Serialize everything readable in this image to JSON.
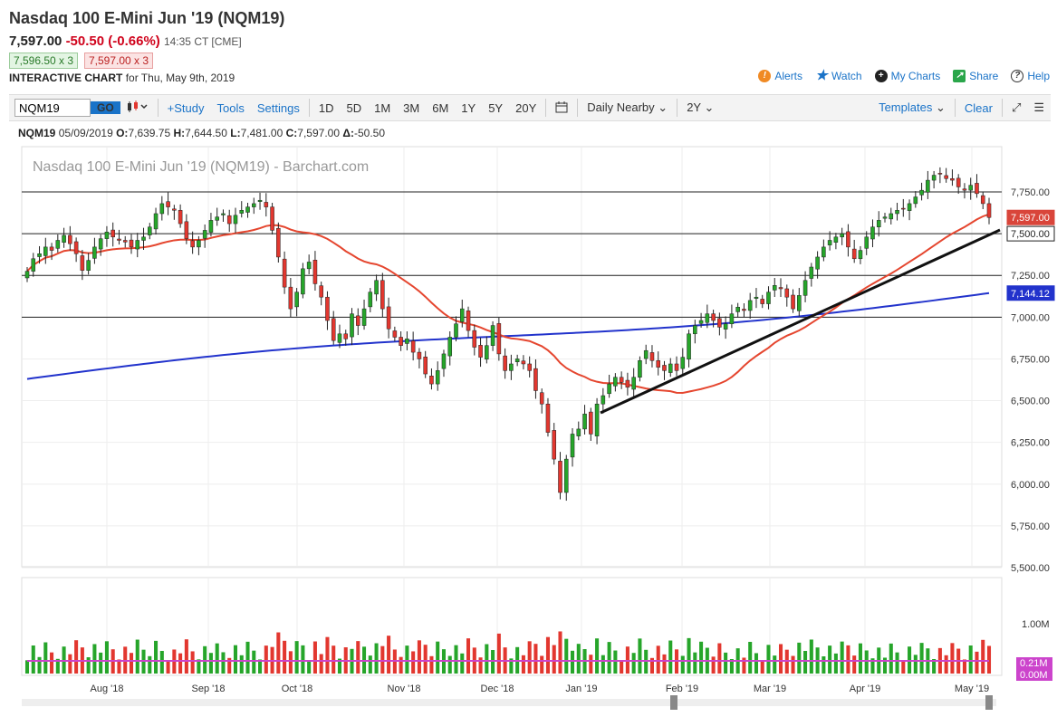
{
  "header": {
    "title": "Nasdaq 100 E-Mini Jun '19 (NQM19)",
    "last": "7,597.00",
    "change": "-50.50 (-0.66%)",
    "time": "14:35 CT [CME]",
    "bid": "7,596.50 x 3",
    "ask": "7,597.00 x 3",
    "interactive_label": "INTERACTIVE CHART",
    "for_date": "for Thu, May 9th, 2019"
  },
  "links": {
    "alerts": "Alerts",
    "watch": "Watch",
    "my_charts": "My Charts",
    "share": "Share",
    "help": "Help"
  },
  "toolbar": {
    "symbol": "NQM19",
    "go": "GO",
    "study": "+Study",
    "tools": "Tools",
    "settings": "Settings",
    "periods": [
      "1D",
      "5D",
      "1M",
      "3M",
      "6M",
      "1Y",
      "5Y",
      "20Y"
    ],
    "aggregation": "Daily Nearby",
    "range": "2Y",
    "templates": "Templates",
    "clear": "Clear"
  },
  "ohlc": {
    "symbol": "NQM19",
    "date": "05/09/2019",
    "open_label": "O:",
    "open": "7,639.75",
    "high_label": "H:",
    "high": "7,644.50",
    "low_label": "L:",
    "low": "7,481.00",
    "close_label": "C:",
    "close": "7,597.00",
    "delta_label": "Δ:",
    "delta": "-50.50"
  },
  "colors": {
    "up": "#26a52a",
    "down": "#e2372f",
    "ma_red": "#e5462f",
    "ma_blue": "#2233cc",
    "accent": "#1a73c8",
    "last_price": "#d9453a"
  },
  "chart_data": {
    "type": "candlestick",
    "title": "Nasdaq 100 E-Mini Jun '19 (NQM19) - Barchart.com",
    "ylim": [
      5500,
      8000
    ],
    "y_ticks": [
      5500,
      5750,
      6000,
      6250,
      6500,
      6750,
      7000,
      7250,
      7500,
      7750
    ],
    "y_tick_labels": [
      "5,500.00",
      "5,750.00",
      "6,000.00",
      "6,250.00",
      "6,500.00",
      "6,750.00",
      "7,000.00",
      "7,250.00",
      "7,500.00",
      "7,750.00"
    ],
    "x_labels": [
      "Aug '18",
      "Sep '18",
      "Oct '18",
      "Nov '18",
      "Dec '18",
      "Jan '19",
      "Feb '19",
      "Mar '19",
      "Apr '19",
      "May '19"
    ],
    "horizontal_lines": [
      7750,
      7500,
      7250,
      7000
    ],
    "last_price": 7597,
    "last_price_label": "7,597.00",
    "ma_red_last": 7500,
    "ma_red_last_label": "7,500.00",
    "ma_blue_last": 7144.12,
    "ma_blue_last_label": "7,144.12",
    "closes": [
      7275,
      7350,
      7380,
      7420,
      7400,
      7460,
      7490,
      7440,
      7380,
      7280,
      7340,
      7420,
      7470,
      7510,
      7480,
      7460,
      7450,
      7420,
      7460,
      7480,
      7540,
      7620,
      7680,
      7660,
      7640,
      7560,
      7470,
      7420,
      7460,
      7520,
      7580,
      7600,
      7620,
      7560,
      7610,
      7640,
      7660,
      7680,
      7700,
      7660,
      7520,
      7360,
      7180,
      7050,
      7150,
      7290,
      7330,
      7200,
      7120,
      6980,
      6860,
      6900,
      6870,
      7020,
      6950,
      7050,
      7150,
      7220,
      7050,
      6930,
      6880,
      6830,
      6870,
      6790,
      6750,
      6660,
      6600,
      6680,
      6780,
      6880,
      6960,
      7050,
      6920,
      6820,
      6760,
      6830,
      6950,
      6780,
      6680,
      6720,
      6750,
      6720,
      6680,
      6560,
      6480,
      6310,
      6150,
      5950,
      6150,
      6300,
      6330,
      6420,
      6300,
      6480,
      6530,
      6600,
      6640,
      6610,
      6580,
      6640,
      6740,
      6800,
      6740,
      6700,
      6680,
      6720,
      6680,
      6760,
      6900,
      6950,
      6980,
      7020,
      6980,
      6940,
      6960,
      7020,
      7060,
      7040,
      7100,
      7120,
      7080,
      7150,
      7190,
      7170,
      7120,
      7050,
      7130,
      7220,
      7300,
      7360,
      7420,
      7460,
      7480,
      7500,
      7420,
      7350,
      7400,
      7480,
      7540,
      7580,
      7600,
      7620,
      7640,
      7650,
      7680,
      7720,
      7760,
      7820,
      7850,
      7860,
      7830,
      7820,
      7780,
      7760,
      7790,
      7740,
      7680,
      7597
    ],
    "volumes_label_ticks": [
      "1.00M"
    ],
    "volume_labels": [
      "0.21M",
      "0.00M"
    ],
    "volume_ma_color": "#cc44cc"
  }
}
